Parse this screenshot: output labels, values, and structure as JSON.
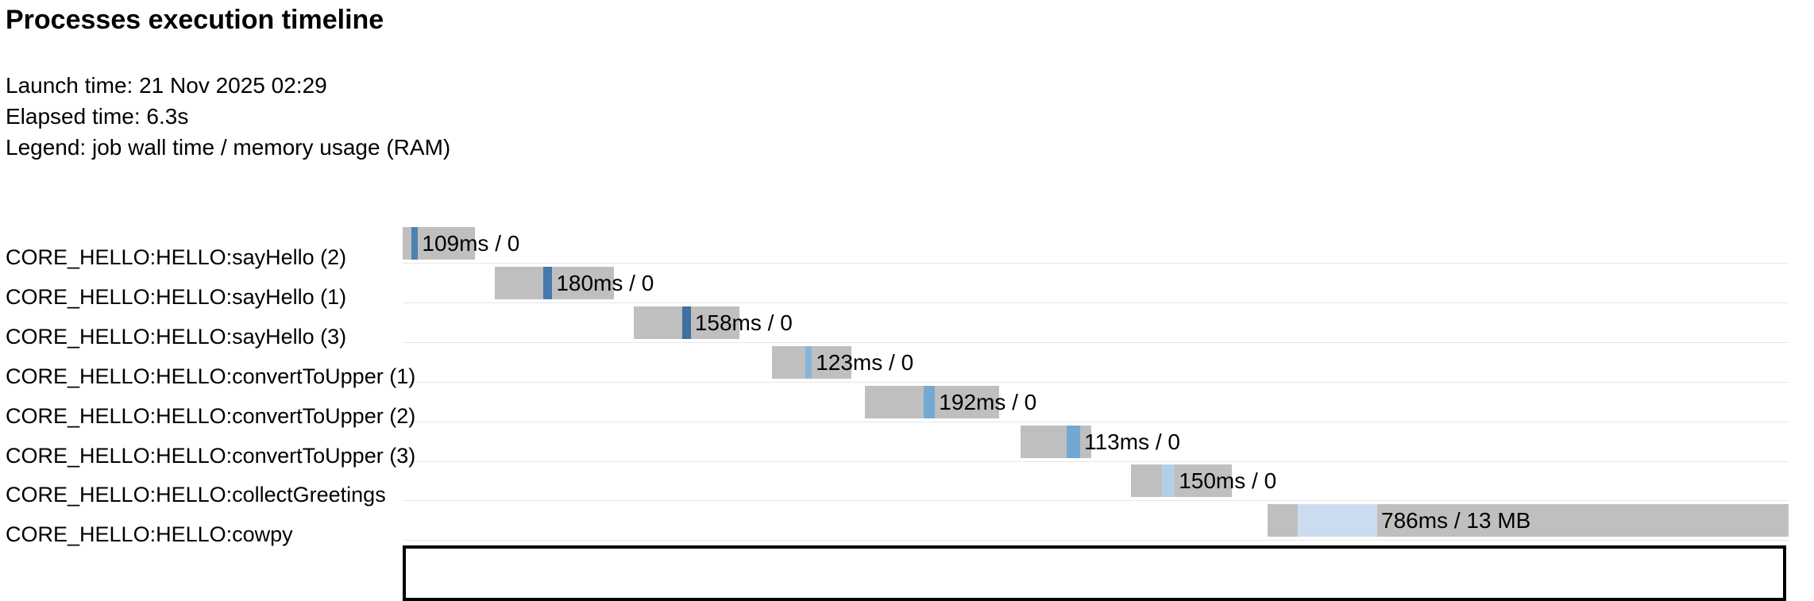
{
  "page": {
    "title": "Processes execution timeline",
    "launch_time_line": "Launch time: 21 Nov 2025 02:29",
    "elapsed_time_line": "Elapsed time: 6.3s",
    "legend_line": "Legend: job wall time / memory usage (RAM)"
  },
  "colors": {
    "bar_gray": "#bfbfbf",
    "row_separator": "#e7e7e7",
    "text": "#000000"
  },
  "chart_data": {
    "type": "timeline",
    "title": "Processes execution timeline",
    "elapsed_seconds": 6.3,
    "time_unit": "seconds",
    "legend": "job wall time / memory usage (RAM)",
    "rows": [
      {
        "label": "CORE_HELLO:HELLO:sayHello (2)",
        "value_label": "109ms / 0",
        "bar_start": 0.0,
        "run_start": 0.04,
        "run_end": 0.07,
        "bar_end": 0.33,
        "run_color": "#4e81b0"
      },
      {
        "label": "CORE_HELLO:HELLO:sayHello (1)",
        "value_label": "180ms / 0",
        "bar_start": 0.42,
        "run_start": 0.64,
        "run_end": 0.68,
        "bar_end": 0.96,
        "run_color": "#4479ad"
      },
      {
        "label": "CORE_HELLO:HELLO:sayHello (3)",
        "value_label": "158ms / 0",
        "bar_start": 1.05,
        "run_start": 1.27,
        "run_end": 1.31,
        "bar_end": 1.53,
        "run_color": "#416f9e"
      },
      {
        "label": "CORE_HELLO:HELLO:convertToUpper (1)",
        "value_label": "123ms / 0",
        "bar_start": 1.68,
        "run_start": 1.83,
        "run_end": 1.86,
        "bar_end": 2.04,
        "run_color": "#87b4da"
      },
      {
        "label": "CORE_HELLO:HELLO:convertToUpper (2)",
        "value_label": "192ms / 0",
        "bar_start": 2.1,
        "run_start": 2.37,
        "run_end": 2.42,
        "bar_end": 2.71,
        "run_color": "#74a9d1"
      },
      {
        "label": "CORE_HELLO:HELLO:convertToUpper (3)",
        "value_label": "113ms / 0",
        "bar_start": 2.81,
        "run_start": 3.02,
        "run_end": 3.08,
        "bar_end": 3.13,
        "run_color": "#72a8d1"
      },
      {
        "label": "CORE_HELLO:HELLO:collectGreetings",
        "value_label": "150ms / 0",
        "bar_start": 3.31,
        "run_start": 3.45,
        "run_end": 3.51,
        "bar_end": 3.77,
        "run_color": "#b2cfe8"
      },
      {
        "label": "CORE_HELLO:HELLO:cowpy",
        "value_label": "786ms / 13 MB",
        "bar_start": 3.93,
        "run_start": 4.07,
        "run_end": 4.43,
        "bar_end": 6.3,
        "run_color": "#ccdcf0"
      }
    ]
  }
}
